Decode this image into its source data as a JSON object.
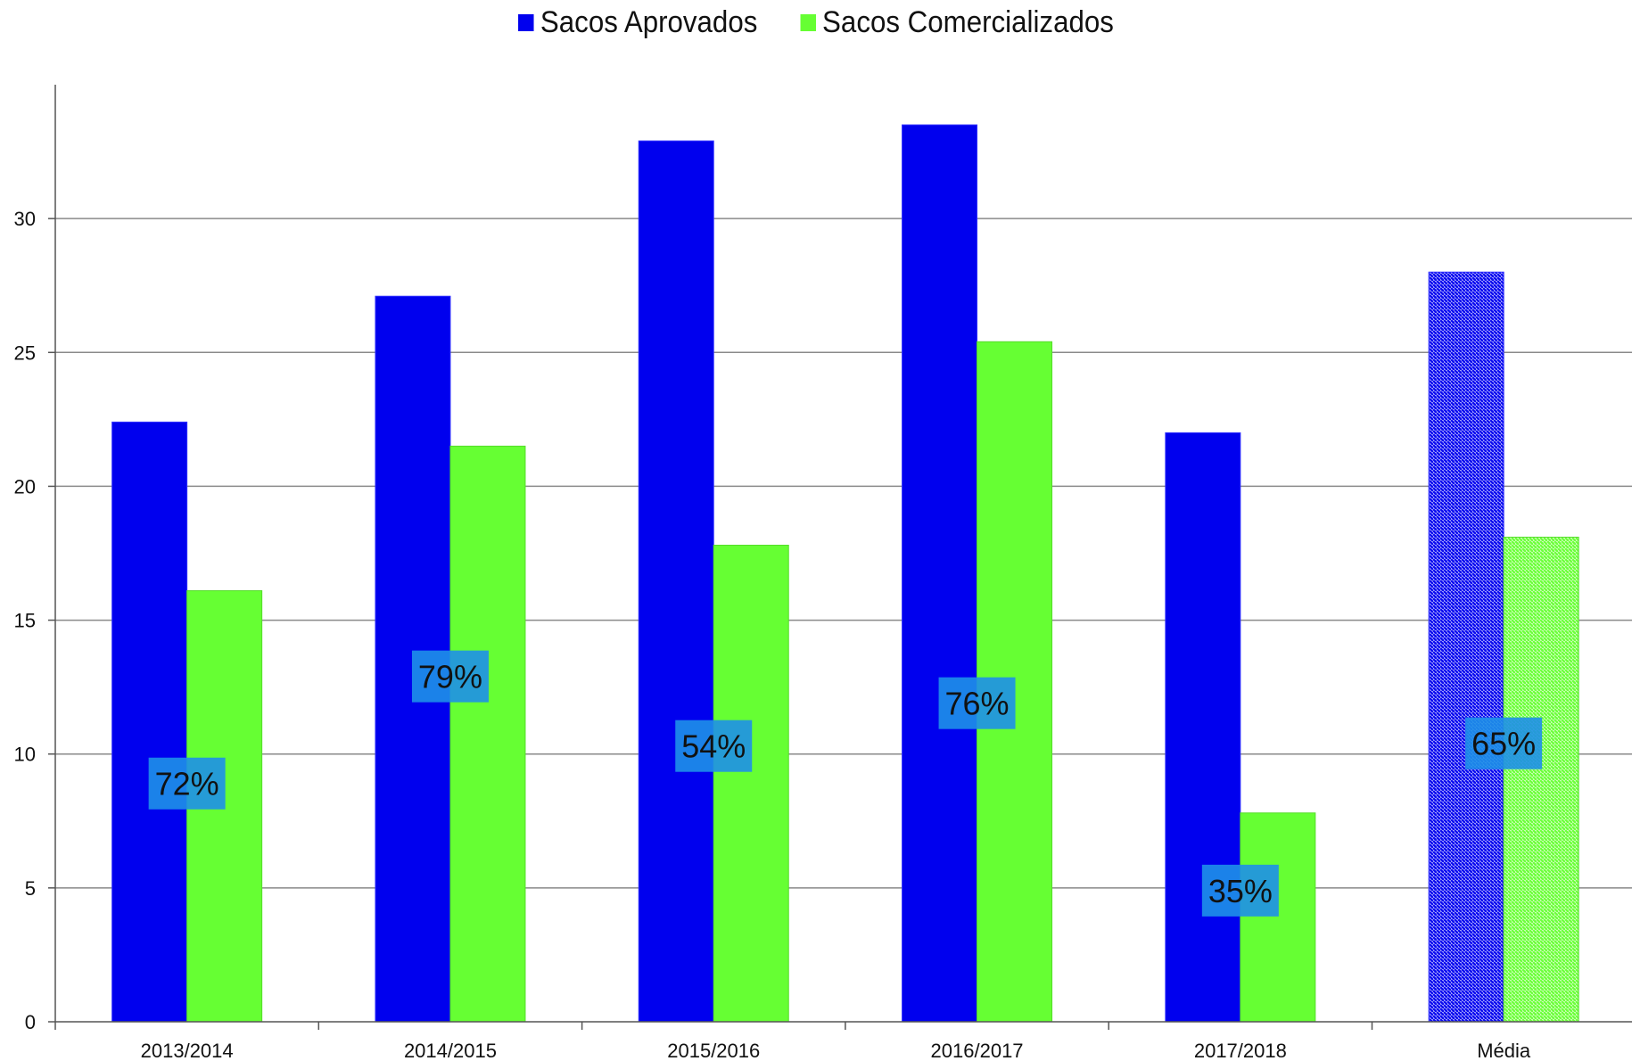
{
  "chart_data": {
    "type": "bar",
    "categories": [
      "2013/2014",
      "2014/2015",
      "2015/2016",
      "2016/2017",
      "2017/2018",
      "Média"
    ],
    "series": [
      {
        "name": "Sacos Aprovados",
        "color": "#0000ee",
        "values": [
          22.4,
          27.1,
          32.9,
          33.5,
          22.0,
          28.0
        ]
      },
      {
        "name": "Sacos Comercializados",
        "color": "#66ff33",
        "values": [
          16.1,
          21.5,
          17.8,
          25.4,
          7.8,
          18.1
        ]
      }
    ],
    "data_labels": [
      "72%",
      "79%",
      "54%",
      "76%",
      "35%",
      "65%"
    ],
    "data_label_values": [
      8.9,
      12.9,
      10.3,
      11.9,
      4.9,
      10.4
    ],
    "data_label_bg": "#1e90e8",
    "hatched_category": "Média",
    "yticks": [
      0,
      5,
      10,
      15,
      20,
      25,
      30
    ],
    "ylim": [
      0,
      35
    ],
    "grid": true,
    "legend_position": "top-center",
    "title": "",
    "xlabel": "",
    "ylabel": ""
  }
}
